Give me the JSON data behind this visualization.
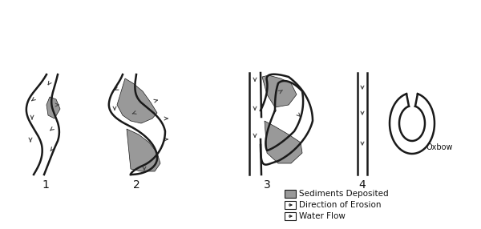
{
  "background_color": "#ffffff",
  "sediment_color": "#999999",
  "outline_color": "#1a1a1a",
  "arrow_color": "#444444",
  "label_color": "#111111",
  "legend_items": [
    "Sediments Deposited",
    "Direction of Erosion",
    "Water Flow"
  ],
  "stage_labels": [
    "1",
    "2",
    "3",
    "4"
  ],
  "oxbow_label": "Oxbow",
  "lw_bank": 1.8,
  "lw_arrow": 0.9
}
